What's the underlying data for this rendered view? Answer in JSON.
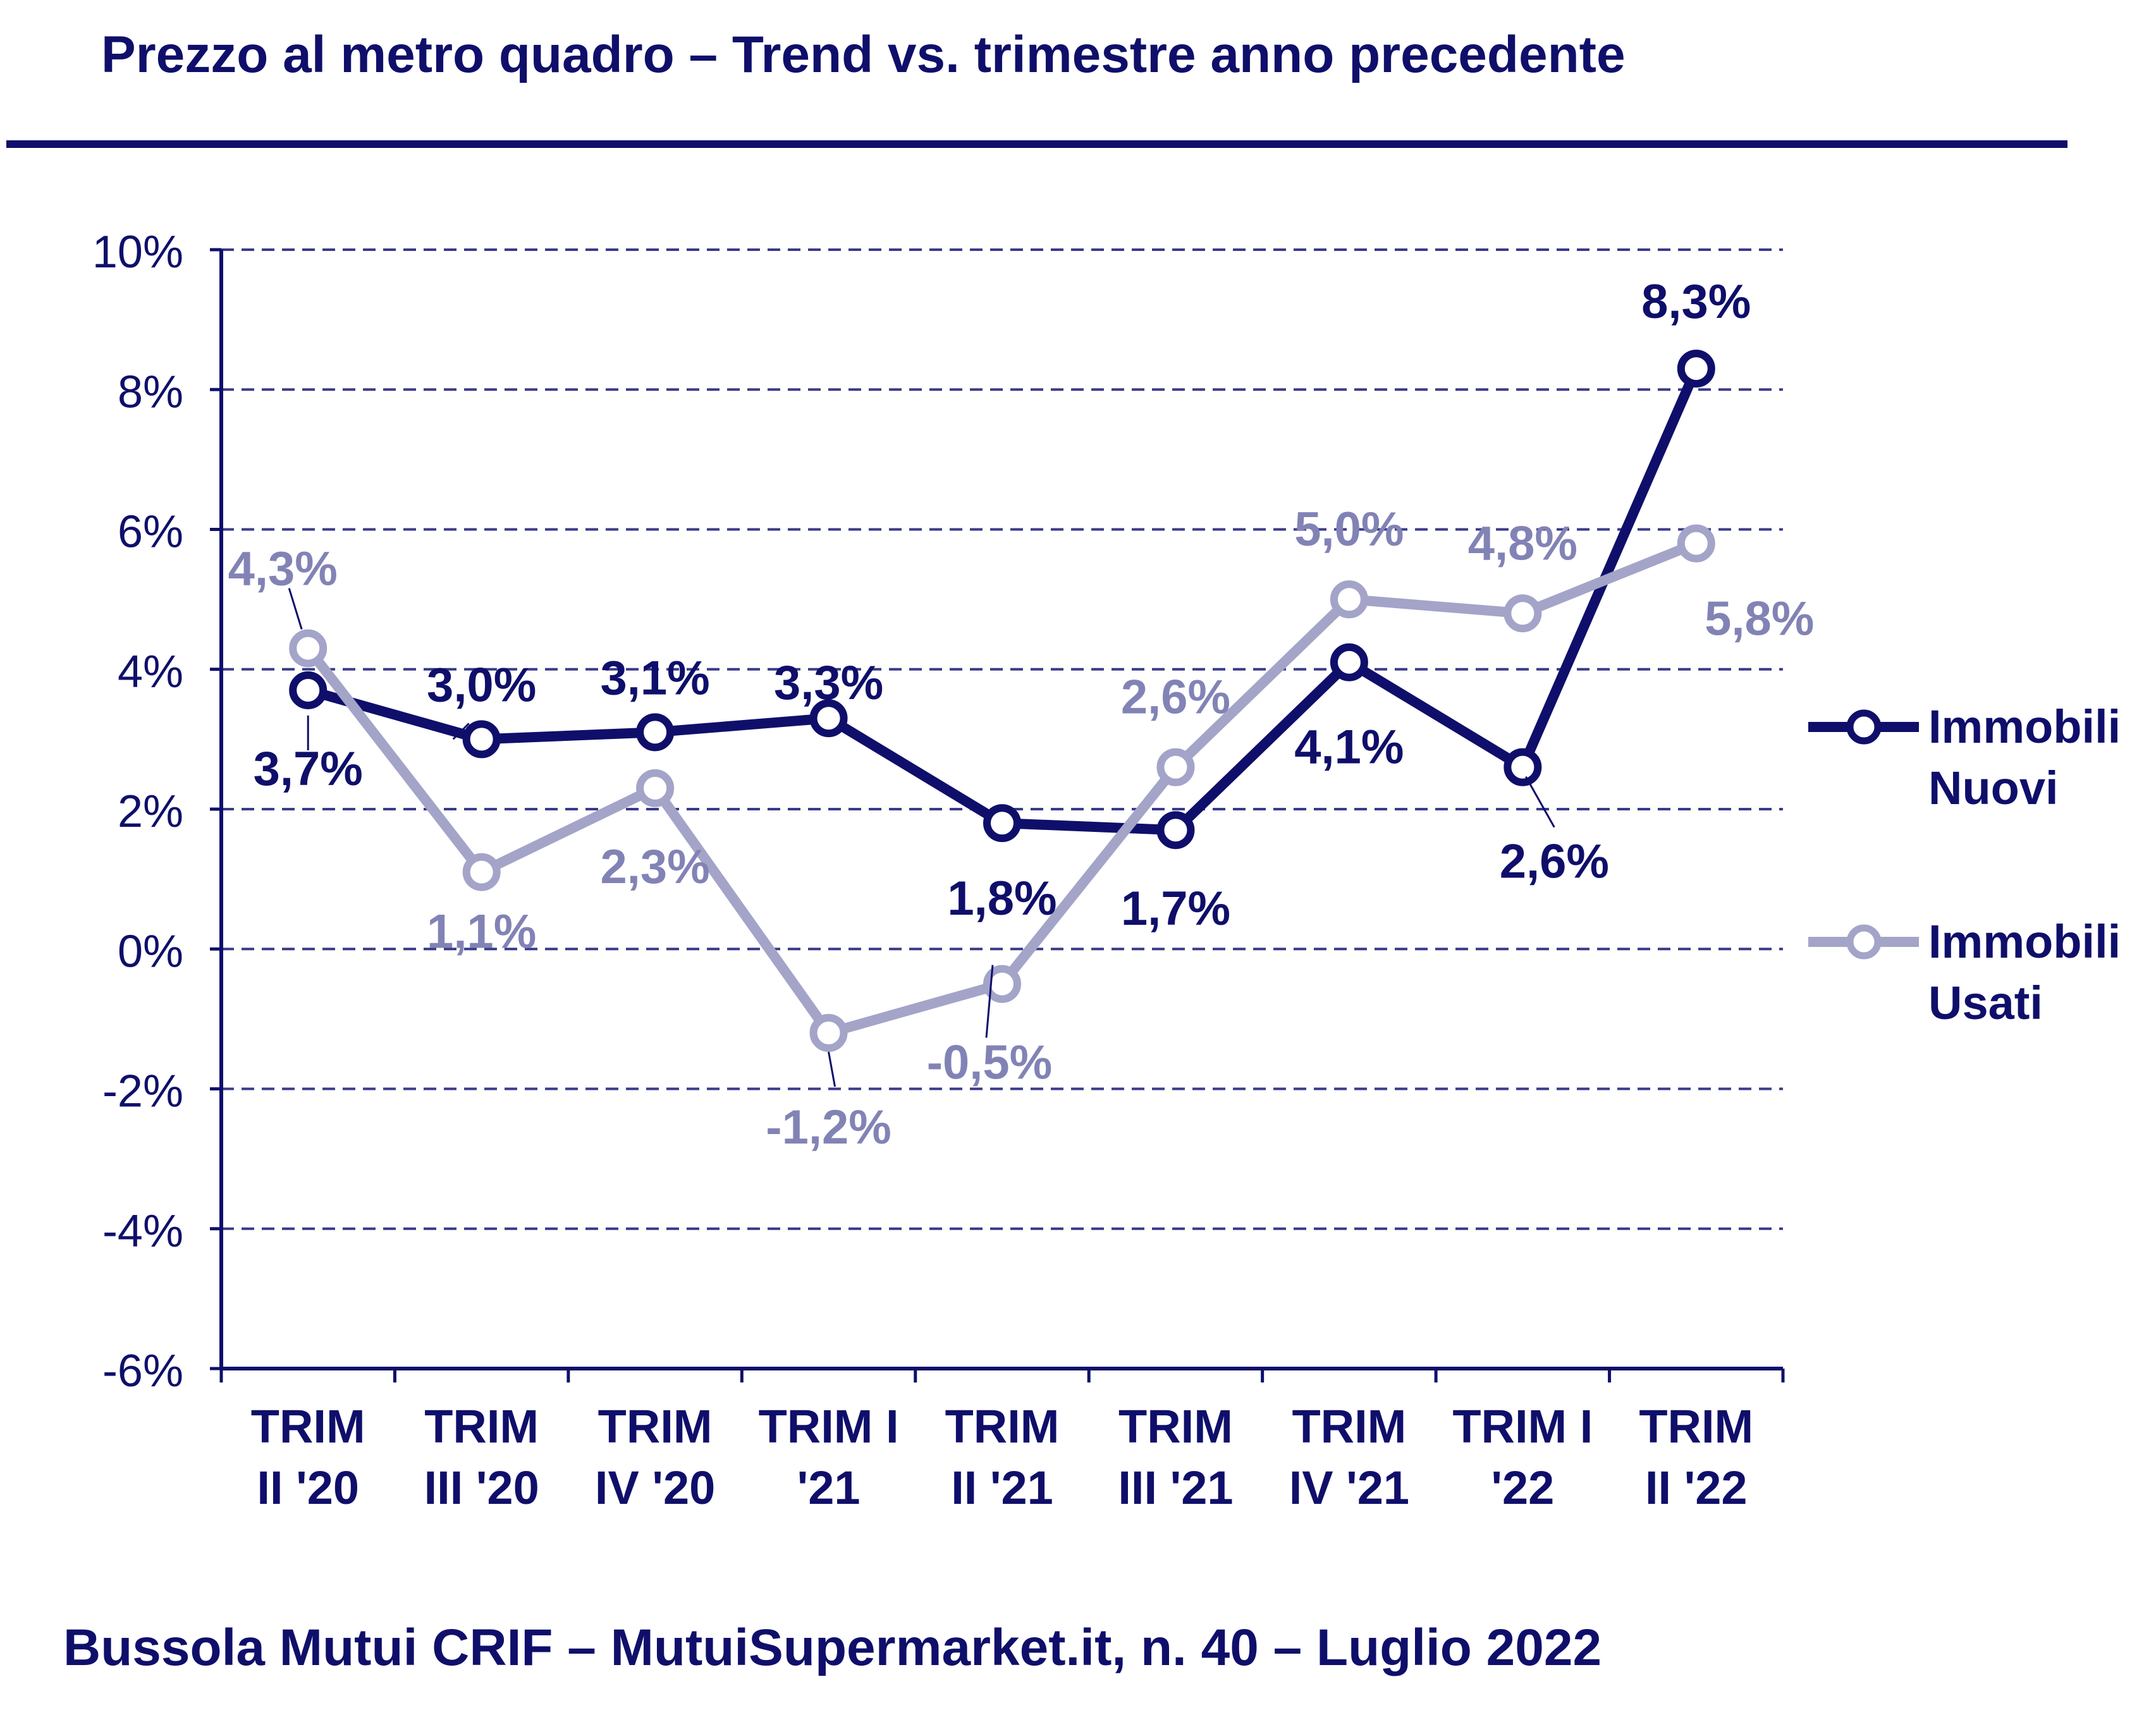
{
  "title": "Prezzo al metro quadro – Trend vs. trimestre anno precedente",
  "footer": "Bussola Mutui CRIF – MutuiSupermarket.it, n. 40 – Luglio 2022",
  "colors": {
    "dark_navy": "#0f0f6b",
    "light_lavender": "#a3a4c8",
    "lavender_label": "#8283b5",
    "grid": "#3a3a8a"
  },
  "chart_data": {
    "type": "line",
    "categories": [
      [
        "TRIM",
        "II '20"
      ],
      [
        "TRIM",
        "III '20"
      ],
      [
        "TRIM",
        "IV '20"
      ],
      [
        "TRIM I",
        "'21"
      ],
      [
        "TRIM",
        "II '21"
      ],
      [
        "TRIM",
        "III '21"
      ],
      [
        "TRIM",
        "IV '21"
      ],
      [
        "TRIM I",
        "'22"
      ],
      [
        "TRIM",
        "II '22"
      ]
    ],
    "series": [
      {
        "name": [
          "Immobili",
          "Nuovi"
        ],
        "color": "#0f0f6b",
        "values": [
          3.7,
          3.0,
          3.1,
          3.3,
          1.8,
          1.7,
          4.1,
          2.6,
          8.3
        ],
        "labels": [
          "3,7%",
          "3,0%",
          "3,1%",
          "3,3%",
          "1,8%",
          "1,7%",
          "4,1%",
          "2,6%",
          "8,3%"
        ]
      },
      {
        "name": [
          "Immobili",
          "Usati"
        ],
        "color": "#a3a4c8",
        "values": [
          4.3,
          1.1,
          2.3,
          -1.2,
          -0.5,
          2.6,
          5.0,
          4.8,
          5.8
        ],
        "labels": [
          "4,3%",
          "1,1%",
          "2,3%",
          "-1,2%",
          "-0,5%",
          "2,6%",
          "5,0%",
          "4,8%",
          "5,8%"
        ]
      }
    ],
    "y_ticks": [
      -6,
      -4,
      -2,
      0,
      2,
      4,
      6,
      8,
      10
    ],
    "y_tick_labels": [
      "-6%",
      "-4%",
      "-2%",
      "0%",
      "2%",
      "4%",
      "6%",
      "8%",
      "10%"
    ],
    "ylim": [
      -6,
      10
    ],
    "grid": "dashed horizontal",
    "legend": "right"
  }
}
